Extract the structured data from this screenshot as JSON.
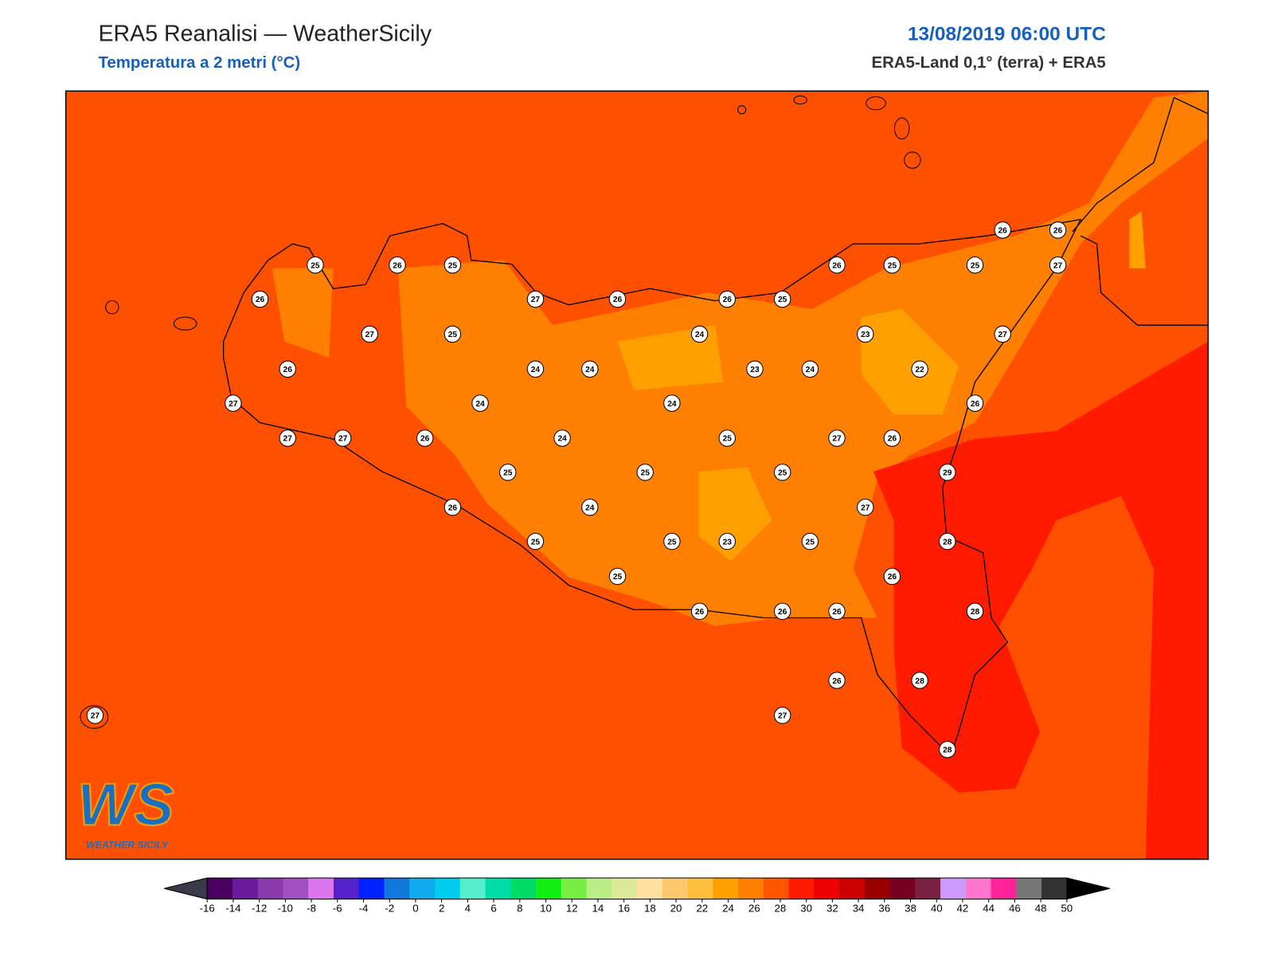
{
  "header": {
    "title": "ERA5 Reanalisi — WeatherSicily",
    "subtitle": "Temperatura a 2 metri (°C)",
    "datetime": "13/08/2019 06:00 UTC",
    "source": "ERA5-Land 0,1° (terra) + ERA5"
  },
  "stations": [
    25,
    26,
    25,
    26,
    27,
    26,
    26,
    25,
    26,
    25,
    25,
    26,
    26,
    27,
    27,
    25,
    24,
    23,
    27,
    26,
    24,
    24,
    23,
    24,
    22,
    27,
    24,
    24,
    26,
    27,
    27,
    26,
    24,
    25,
    27,
    26,
    25,
    25,
    25,
    29,
    26,
    24,
    27,
    25,
    25,
    23,
    25,
    28,
    25,
    26,
    26,
    26,
    26,
    28,
    26,
    28,
    27,
    28,
    27
  ],
  "colorbar": {
    "ticks": [
      -16,
      -14,
      -12,
      -10,
      -8,
      -6,
      -4,
      -2,
      0,
      2,
      4,
      6,
      8,
      10,
      12,
      14,
      16,
      18,
      20,
      22,
      24,
      26,
      28,
      30,
      32,
      34,
      36,
      38,
      40,
      42,
      44,
      46,
      48,
      50
    ],
    "colors": [
      "#4a0060",
      "#6a1a9a",
      "#8a3aaa",
      "#a050c0",
      "#dd77ee",
      "#5522cc",
      "#0022ff",
      "#1177dd",
      "#11aaee",
      "#00ccee",
      "#55eecc",
      "#00ddaa",
      "#00dd66",
      "#11ee11",
      "#77ee44",
      "#bbee88",
      "#dde899",
      "#ffe0a0",
      "#ffc870",
      "#ffc040",
      "#ffa000",
      "#ff8000",
      "#ff5500",
      "#ff1a00",
      "#ee0000",
      "#cc0000",
      "#990000",
      "#770022",
      "#7a2244",
      "#cc99ff",
      "#ff77cc",
      "#ff2299",
      "#777777",
      "#333333"
    ],
    "under_color": "#3a3a4a",
    "over_color": "#000000"
  },
  "logo": {
    "mark": "WS",
    "text": "WEATHER SICILY"
  }
}
